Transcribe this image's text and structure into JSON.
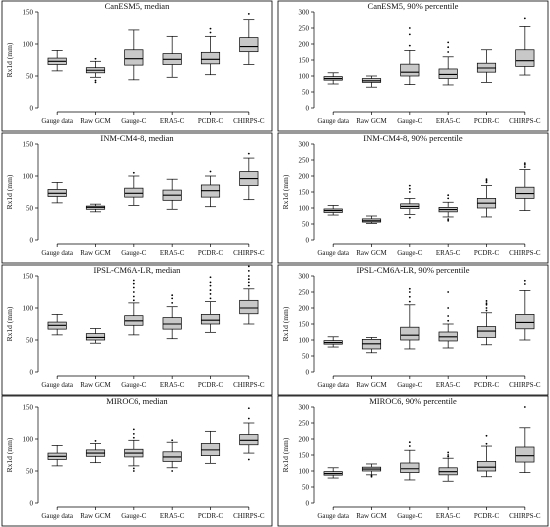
{
  "chart_data": [
    {
      "type": "box",
      "title": "CanESM5, median",
      "ylabel": "Rx1d (mm)",
      "ylim": [
        0,
        150
      ],
      "yticks": [
        0,
        50,
        100,
        150
      ],
      "categories": [
        "Gauge data",
        "Raw GCM",
        "Gauge-C",
        "ERA5-C",
        "PCDR-C",
        "CHIRPS-C"
      ],
      "boxes": [
        {
          "whislo": 58,
          "q1": 68,
          "med": 73,
          "q3": 78,
          "whishi": 90,
          "fliers": []
        },
        {
          "whislo": 48,
          "q1": 55,
          "med": 59,
          "q3": 63,
          "whishi": 73,
          "fliers": [
            40,
            43,
            77
          ]
        },
        {
          "whislo": 44,
          "q1": 67,
          "med": 77,
          "q3": 91,
          "whishi": 122,
          "fliers": []
        },
        {
          "whislo": 48,
          "q1": 68,
          "med": 76,
          "q3": 85,
          "whishi": 112,
          "fliers": []
        },
        {
          "whislo": 52,
          "q1": 69,
          "med": 76,
          "q3": 87,
          "whishi": 112,
          "fliers": [
            118,
            124
          ]
        },
        {
          "whislo": 68,
          "q1": 88,
          "med": 96,
          "q3": 110,
          "whishi": 138,
          "fliers": [
            147
          ]
        }
      ]
    },
    {
      "type": "box",
      "title": "CanESM5, 90% percentile",
      "ylabel": "",
      "ylim": [
        0,
        300
      ],
      "yticks": [
        0,
        50,
        100,
        150,
        200,
        250,
        300
      ],
      "categories": [
        "Gauge data",
        "Raw GCM",
        "Gauge-C",
        "ERA5-C",
        "PCDR-C",
        "CHIRPS-C"
      ],
      "boxes": [
        {
          "whislo": 75,
          "q1": 87,
          "med": 92,
          "q3": 98,
          "whishi": 110,
          "fliers": []
        },
        {
          "whislo": 65,
          "q1": 80,
          "med": 85,
          "q3": 92,
          "whishi": 100,
          "fliers": []
        },
        {
          "whislo": 73,
          "q1": 100,
          "med": 112,
          "q3": 137,
          "whishi": 180,
          "fliers": [
            195,
            230,
            250
          ]
        },
        {
          "whislo": 72,
          "q1": 92,
          "med": 105,
          "q3": 122,
          "whishi": 160,
          "fliers": [
            175,
            190,
            205
          ]
        },
        {
          "whislo": 80,
          "q1": 112,
          "med": 125,
          "q3": 140,
          "whishi": 182,
          "fliers": []
        },
        {
          "whislo": 103,
          "q1": 130,
          "med": 148,
          "q3": 182,
          "whishi": 255,
          "fliers": [
            280
          ]
        }
      ]
    },
    {
      "type": "box",
      "title": "INM-CM4-8, median",
      "ylabel": "Rx1d (mm)",
      "ylim": [
        0,
        150
      ],
      "yticks": [
        0,
        50,
        100,
        150
      ],
      "categories": [
        "Gauge data",
        "Raw GCM",
        "Gauge-C",
        "ERA5-C",
        "PCDR-C",
        "CHIRPS-C"
      ],
      "boxes": [
        {
          "whislo": 58,
          "q1": 68,
          "med": 73,
          "q3": 79,
          "whishi": 90,
          "fliers": []
        },
        {
          "whislo": 44,
          "q1": 48,
          "med": 51,
          "q3": 53,
          "whishi": 56,
          "fliers": []
        },
        {
          "whislo": 54,
          "q1": 67,
          "med": 73,
          "q3": 81,
          "whishi": 100,
          "fliers": [
            105
          ]
        },
        {
          "whislo": 48,
          "q1": 62,
          "med": 70,
          "q3": 78,
          "whishi": 95,
          "fliers": []
        },
        {
          "whislo": 52,
          "q1": 67,
          "med": 77,
          "q3": 86,
          "whishi": 100,
          "fliers": [
            107
          ]
        },
        {
          "whislo": 63,
          "q1": 85,
          "med": 96,
          "q3": 107,
          "whishi": 128,
          "fliers": [
            135
          ]
        }
      ]
    },
    {
      "type": "box",
      "title": "INM-CM4-8, 90% percentile",
      "ylabel": "Rx1d (mm)",
      "ylim": [
        0,
        300
      ],
      "yticks": [
        0,
        50,
        100,
        150,
        200,
        250,
        300
      ],
      "categories": [
        "Gauge data",
        "Raw GCM",
        "Gauge-C",
        "ERA5-C",
        "PCDR-C",
        "CHIRPS-C"
      ],
      "boxes": [
        {
          "whislo": 78,
          "q1": 86,
          "med": 92,
          "q3": 97,
          "whishi": 108,
          "fliers": []
        },
        {
          "whislo": 52,
          "q1": 56,
          "med": 60,
          "q3": 66,
          "whishi": 75,
          "fliers": []
        },
        {
          "whislo": 80,
          "q1": 98,
          "med": 105,
          "q3": 113,
          "whishi": 130,
          "fliers": [
            70,
            150,
            160,
            170
          ]
        },
        {
          "whislo": 72,
          "q1": 88,
          "med": 95,
          "q3": 102,
          "whishi": 118,
          "fliers": [
            60,
            65,
            130,
            140
          ]
        },
        {
          "whislo": 72,
          "q1": 100,
          "med": 115,
          "q3": 130,
          "whishi": 170,
          "fliers": [
            180,
            185,
            190
          ]
        },
        {
          "whislo": 92,
          "q1": 130,
          "med": 145,
          "q3": 165,
          "whishi": 220,
          "fliers": [
            228,
            235,
            240
          ]
        }
      ]
    },
    {
      "type": "box",
      "title": "IPSL-CM6A-LR, median",
      "ylabel": "Rx1d (mm)",
      "ylim": [
        0,
        150
      ],
      "yticks": [
        0,
        50,
        100,
        150
      ],
      "categories": [
        "Gauge data",
        "Raw GCM",
        "Gauge-C",
        "ERA5-C",
        "PCDR-C",
        "CHIRPS-C"
      ],
      "boxes": [
        {
          "whislo": 58,
          "q1": 67,
          "med": 73,
          "q3": 78,
          "whishi": 90,
          "fliers": []
        },
        {
          "whislo": 45,
          "q1": 50,
          "med": 54,
          "q3": 60,
          "whishi": 68,
          "fliers": []
        },
        {
          "whislo": 58,
          "q1": 73,
          "med": 80,
          "q3": 88,
          "whishi": 108,
          "fliers": [
            112,
            118,
            125,
            132,
            138,
            143
          ]
        },
        {
          "whislo": 52,
          "q1": 67,
          "med": 75,
          "q3": 85,
          "whishi": 102,
          "fliers": [
            108,
            115,
            120
          ]
        },
        {
          "whislo": 62,
          "q1": 75,
          "med": 81,
          "q3": 90,
          "whishi": 110,
          "fliers": [
            115,
            122,
            128,
            135,
            140,
            148
          ]
        },
        {
          "whislo": 75,
          "q1": 91,
          "med": 100,
          "q3": 112,
          "whishi": 130,
          "fliers": [
            135,
            140,
            145,
            150,
            158,
            165
          ]
        }
      ]
    },
    {
      "type": "box",
      "title": "IPSL-CM6A-LR, 90% percentile",
      "ylabel": "Rx1d (mm)",
      "ylim": [
        0,
        300
      ],
      "yticks": [
        0,
        50,
        100,
        150,
        200,
        250,
        300
      ],
      "categories": [
        "Gauge data",
        "Raw GCM",
        "Gauge-C",
        "ERA5-C",
        "PCDR-C",
        "CHIRPS-C"
      ],
      "boxes": [
        {
          "whislo": 78,
          "q1": 87,
          "med": 92,
          "q3": 98,
          "whishi": 110,
          "fliers": []
        },
        {
          "whislo": 60,
          "q1": 72,
          "med": 88,
          "q3": 102,
          "whishi": 108,
          "fliers": []
        },
        {
          "whislo": 72,
          "q1": 100,
          "med": 115,
          "q3": 140,
          "whishi": 210,
          "fliers": [
            220,
            235,
            250,
            260
          ]
        },
        {
          "whislo": 75,
          "q1": 97,
          "med": 110,
          "q3": 125,
          "whishi": 150,
          "fliers": [
            160,
            175,
            200,
            250
          ]
        },
        {
          "whislo": 85,
          "q1": 108,
          "med": 128,
          "q3": 142,
          "whishi": 185,
          "fliers": [
            192,
            200,
            210,
            215,
            222
          ]
        },
        {
          "whislo": 100,
          "q1": 135,
          "med": 155,
          "q3": 180,
          "whishi": 255,
          "fliers": [
            275,
            285
          ]
        }
      ]
    },
    {
      "type": "box",
      "title": "MIROC6, median",
      "ylabel": "Rx1d (mm)",
      "ylim": [
        0,
        150
      ],
      "yticks": [
        0,
        50,
        100,
        150
      ],
      "categories": [
        "Gauge data",
        "Raw GCM",
        "Gauge-C",
        "ERA5-C",
        "PCDR-C",
        "CHIRPS-C"
      ],
      "boxes": [
        {
          "whislo": 58,
          "q1": 68,
          "med": 73,
          "q3": 78,
          "whishi": 90,
          "fliers": []
        },
        {
          "whislo": 63,
          "q1": 73,
          "med": 78,
          "q3": 83,
          "whishi": 93,
          "fliers": [
            97
          ]
        },
        {
          "whislo": 58,
          "q1": 72,
          "med": 78,
          "q3": 84,
          "whishi": 98,
          "fliers": [
            50,
            54,
            102,
            108,
            115
          ]
        },
        {
          "whislo": 55,
          "q1": 65,
          "med": 72,
          "q3": 80,
          "whishi": 95,
          "fliers": [
            50,
            98
          ]
        },
        {
          "whislo": 62,
          "q1": 74,
          "med": 83,
          "q3": 93,
          "whishi": 112,
          "fliers": []
        },
        {
          "whislo": 78,
          "q1": 91,
          "med": 98,
          "q3": 107,
          "whishi": 125,
          "fliers": [
            68,
            132,
            148
          ]
        }
      ]
    },
    {
      "type": "box",
      "title": "MIROC6, 90% percentile",
      "ylabel": "Rx1d (mm)",
      "ylim": [
        0,
        300
      ],
      "yticks": [
        0,
        50,
        100,
        150,
        200,
        250,
        300
      ],
      "categories": [
        "Gauge data",
        "Raw GCM",
        "Gauge-C",
        "ERA5-C",
        "PCDR-C",
        "CHIRPS-C"
      ],
      "boxes": [
        {
          "whislo": 78,
          "q1": 87,
          "med": 92,
          "q3": 98,
          "whishi": 110,
          "fliers": []
        },
        {
          "whislo": 88,
          "q1": 100,
          "med": 106,
          "q3": 112,
          "whishi": 122,
          "fliers": [
            82,
            86
          ]
        },
        {
          "whislo": 72,
          "q1": 95,
          "med": 107,
          "q3": 125,
          "whishi": 165,
          "fliers": [
            178,
            190
          ]
        },
        {
          "whislo": 68,
          "q1": 88,
          "med": 98,
          "q3": 110,
          "whishi": 140,
          "fliers": [
            145,
            150,
            158
          ]
        },
        {
          "whislo": 82,
          "q1": 100,
          "med": 112,
          "q3": 130,
          "whishi": 178,
          "fliers": [
            185,
            210
          ]
        },
        {
          "whislo": 95,
          "q1": 128,
          "med": 148,
          "q3": 175,
          "whishi": 235,
          "fliers": [
            300
          ]
        }
      ]
    }
  ]
}
